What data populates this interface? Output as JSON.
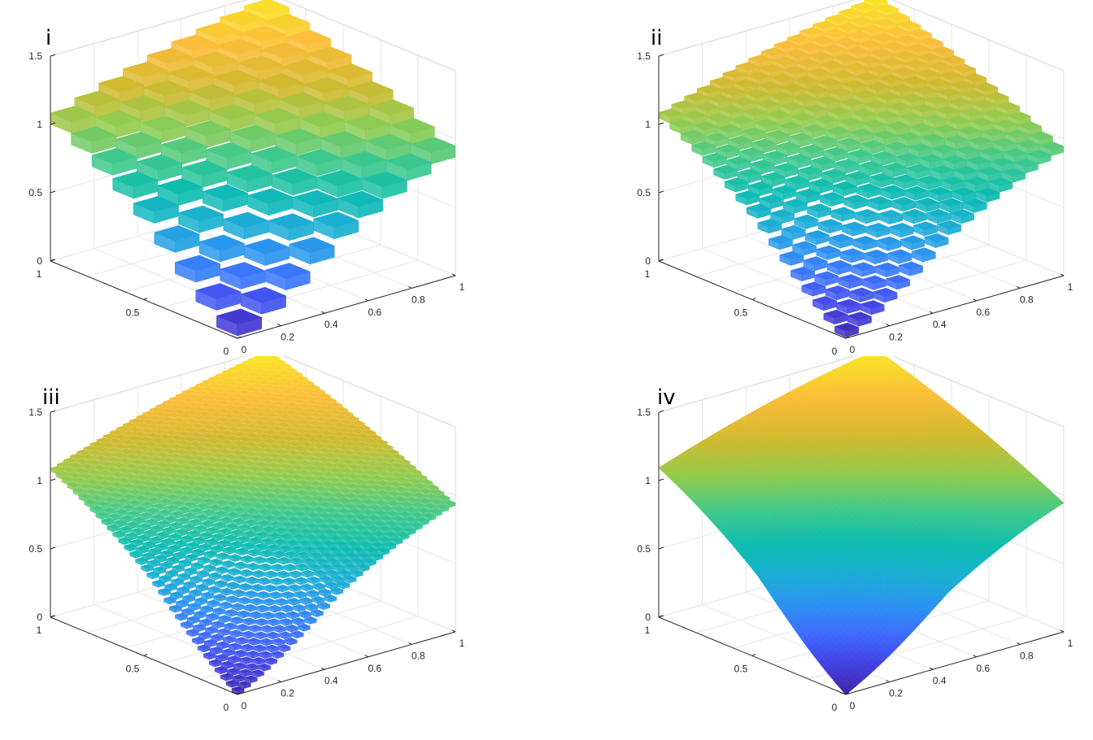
{
  "chart_data": [
    {
      "type": "surface",
      "panel_label": "i",
      "grid_resolution": 9,
      "x_range": [
        0,
        1
      ],
      "y_range": [
        0,
        1
      ],
      "zlim": [
        0,
        1.5
      ],
      "z_ticks": [
        "0",
        "0.5",
        "1",
        "1.5"
      ],
      "x_ticks": [
        "0",
        "0.2",
        "0.4",
        "0.6",
        "0.8",
        "1"
      ],
      "y_ticks": [
        "0",
        "0.5",
        "1"
      ],
      "surface_values": {
        "corner_x0_y0": 0,
        "corner_x1_y0": 0.8,
        "corner_x0_y1": 0.95,
        "corner_x1_y1": 1.5
      },
      "colormap": "parula",
      "grid": true
    },
    {
      "type": "surface",
      "panel_label": "ii",
      "grid_resolution": 17,
      "x_range": [
        0,
        1
      ],
      "y_range": [
        0,
        1
      ],
      "zlim": [
        0,
        1.5
      ],
      "z_ticks": [
        "0",
        "0.5",
        "1",
        "1.5"
      ],
      "x_ticks": [
        "0",
        "0.2",
        "0.4",
        "0.6",
        "0.8",
        "1"
      ],
      "y_ticks": [
        "0",
        "0.5",
        "1"
      ],
      "surface_values": {
        "corner_x0_y0": 0,
        "corner_x1_y0": 0.8,
        "corner_x0_y1": 0.95,
        "corner_x1_y1": 1.5
      },
      "colormap": "parula",
      "grid": true
    },
    {
      "type": "surface",
      "panel_label": "iii",
      "grid_resolution": 33,
      "x_range": [
        0,
        1
      ],
      "y_range": [
        0,
        1
      ],
      "zlim": [
        0,
        1.5
      ],
      "z_ticks": [
        "0",
        "0.5",
        "1",
        "1.5"
      ],
      "x_ticks": [
        "0",
        "0.2",
        "0.4",
        "0.6",
        "0.8",
        "1"
      ],
      "y_ticks": [
        "0",
        "0.5",
        "1"
      ],
      "surface_values": {
        "corner_x0_y0": 0,
        "corner_x1_y0": 0.8,
        "corner_x0_y1": 0.95,
        "corner_x1_y1": 1.5
      },
      "colormap": "parula",
      "grid": true
    },
    {
      "type": "surface",
      "panel_label": "iv",
      "grid_resolution": 60,
      "x_range": [
        0,
        1
      ],
      "y_range": [
        0,
        1
      ],
      "zlim": [
        0,
        1.5
      ],
      "z_ticks": [
        "0",
        "0.5",
        "1",
        "1.5"
      ],
      "x_ticks": [
        "0",
        "0.2",
        "0.4",
        "0.6",
        "0.8",
        "1"
      ],
      "y_ticks": [
        "0",
        "0.5",
        "1"
      ],
      "surface_values": {
        "corner_x0_y0": 0,
        "corner_x1_y0": 0.8,
        "corner_x0_y1": 0.95,
        "corner_x1_y1": 1.5
      },
      "colormap": "parula",
      "grid": true
    }
  ],
  "colors": {
    "parula": [
      "#3e26a8",
      "#4443e6",
      "#3f6efe",
      "#2b94f0",
      "#1bafd3",
      "#0ebdb0",
      "#40c98c",
      "#90cc50",
      "#d0ba2f",
      "#fbbd3a",
      "#f9e825"
    ],
    "grid": "#e6e6e6",
    "axis": "#262626"
  }
}
